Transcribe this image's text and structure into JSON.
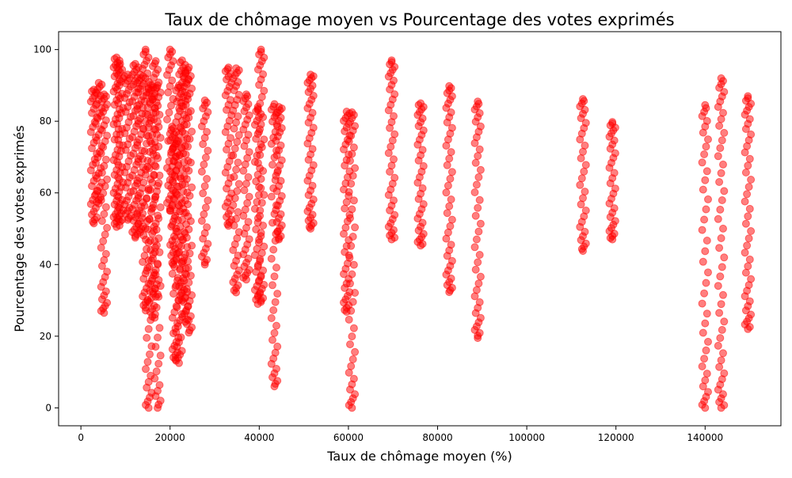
{
  "chart_data": {
    "type": "scatter",
    "title": "Taux de chômage moyen vs Pourcentage des votes exprimés",
    "xlabel": "Taux de chômage moyen (%)",
    "ylabel": "Pourcentage des votes exprimés",
    "xlim": [
      -5000,
      157000
    ],
    "ylim": [
      -5,
      105
    ],
    "xticks": [
      0,
      20000,
      40000,
      60000,
      80000,
      100000,
      120000,
      140000
    ],
    "yticks": [
      0,
      20,
      40,
      60,
      80,
      100
    ],
    "grid": false,
    "legend": "none",
    "marker_color": "#ff0000",
    "marker_alpha": 0.5,
    "clusters": [
      {
        "x": 2900,
        "y_min": 51.5,
        "y_max": 88.8,
        "n": 34
      },
      {
        "x": 4000,
        "y_min": 57.0,
        "y_max": 90.7,
        "n": 30
      },
      {
        "x": 5200,
        "y_min": 26.5,
        "y_max": 87.5,
        "n": 44
      },
      {
        "x": 8000,
        "y_min": 50.5,
        "y_max": 97.8,
        "n": 46
      },
      {
        "x": 8800,
        "y_min": 52.0,
        "y_max": 96.0,
        "n": 40
      },
      {
        "x": 10500,
        "y_min": 52.5,
        "y_max": 93.0,
        "n": 36
      },
      {
        "x": 12200,
        "y_min": 47.5,
        "y_max": 96.0,
        "n": 44
      },
      {
        "x": 13300,
        "y_min": 49.0,
        "y_max": 93.0,
        "n": 40
      },
      {
        "x": 14500,
        "y_min": 28.0,
        "y_max": 100.0,
        "n": 46
      },
      {
        "x": 15200,
        "y_min": 0.0,
        "y_max": 91.0,
        "n": 44
      },
      {
        "x": 16000,
        "y_min": 25.5,
        "y_max": 90.0,
        "n": 44
      },
      {
        "x": 16800,
        "y_min": 31.0,
        "y_max": 96.8,
        "n": 40
      },
      {
        "x": 17200,
        "y_min": 0.0,
        "y_max": 90.0,
        "n": 40
      },
      {
        "x": 20000,
        "y_min": 55.0,
        "y_max": 100.0,
        "n": 32
      },
      {
        "x": 20700,
        "y_min": 40.0,
        "y_max": 78.0,
        "n": 34
      },
      {
        "x": 21200,
        "y_min": 13.5,
        "y_max": 75.0,
        "n": 44
      },
      {
        "x": 22000,
        "y_min": 12.5,
        "y_max": 90.0,
        "n": 46
      },
      {
        "x": 22700,
        "y_min": 30.0,
        "y_max": 97.0,
        "n": 46
      },
      {
        "x": 23400,
        "y_min": 24.0,
        "y_max": 94.0,
        "n": 44
      },
      {
        "x": 24200,
        "y_min": 21.0,
        "y_max": 95.0,
        "n": 44
      },
      {
        "x": 27800,
        "y_min": 40.0,
        "y_max": 85.8,
        "n": 32
      },
      {
        "x": 33100,
        "y_min": 50.8,
        "y_max": 95.0,
        "n": 38
      },
      {
        "x": 34800,
        "y_min": 32.2,
        "y_max": 94.8,
        "n": 44
      },
      {
        "x": 37100,
        "y_min": 35.8,
        "y_max": 87.5,
        "n": 40
      },
      {
        "x": 39700,
        "y_min": 29.0,
        "y_max": 84.0,
        "n": 40
      },
      {
        "x": 40400,
        "y_min": 30.0,
        "y_max": 100.0,
        "n": 44
      },
      {
        "x": 43400,
        "y_min": 6.0,
        "y_max": 84.8,
        "n": 44
      },
      {
        "x": 44400,
        "y_min": 47.0,
        "y_max": 84.0,
        "n": 36
      },
      {
        "x": 51500,
        "y_min": 50.0,
        "y_max": 93.0,
        "n": 40
      },
      {
        "x": 59600,
        "y_min": 26.8,
        "y_max": 82.7,
        "n": 44
      },
      {
        "x": 60800,
        "y_min": 0.0,
        "y_max": 82.5,
        "n": 44
      },
      {
        "x": 69700,
        "y_min": 47.0,
        "y_max": 97.0,
        "n": 40
      },
      {
        "x": 76200,
        "y_min": 45.3,
        "y_max": 85.0,
        "n": 36
      },
      {
        "x": 82600,
        "y_min": 32.3,
        "y_max": 89.8,
        "n": 42
      },
      {
        "x": 89000,
        "y_min": 19.5,
        "y_max": 85.5,
        "n": 42
      },
      {
        "x": 112600,
        "y_min": 43.8,
        "y_max": 86.2,
        "n": 32
      },
      {
        "x": 119200,
        "y_min": 47.0,
        "y_max": 79.8,
        "n": 32
      },
      {
        "x": 140000,
        "y_min": 0.0,
        "y_max": 84.5,
        "n": 40
      },
      {
        "x": 143600,
        "y_min": 0.0,
        "y_max": 92.0,
        "n": 48
      },
      {
        "x": 149600,
        "y_min": 22.0,
        "y_max": 87.0,
        "n": 44
      }
    ]
  }
}
